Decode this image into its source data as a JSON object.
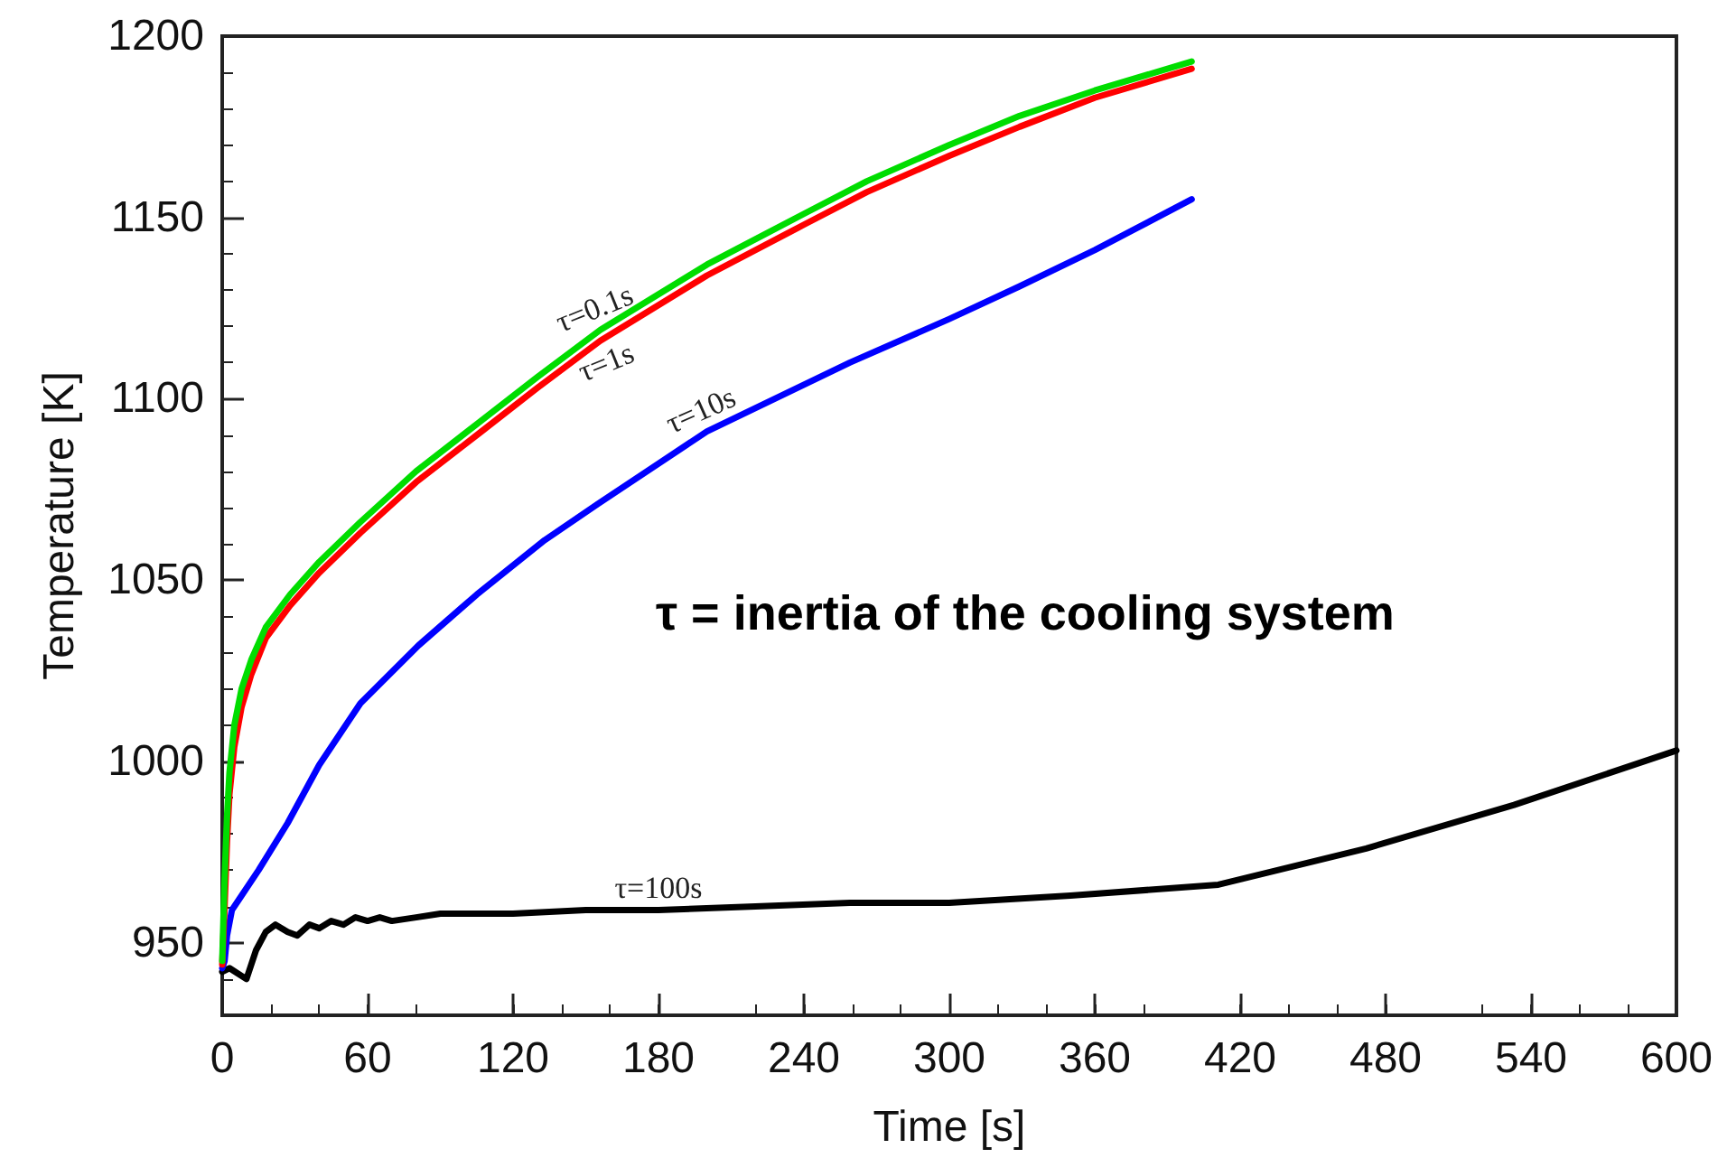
{
  "chart_data": {
    "type": "line",
    "xlabel": "Time [s]",
    "ylabel": "Temperature [K]",
    "xlim": [
      0,
      600
    ],
    "xticks": [
      0,
      60,
      120,
      180,
      240,
      300,
      360,
      420,
      480,
      540,
      600
    ],
    "ylim": [
      930,
      1200
    ],
    "yticks": [
      950,
      1000,
      1050,
      1100,
      1150,
      1200
    ],
    "grid": false,
    "legend": false,
    "line_style": "solid",
    "annotations": [
      "τ = inertia of the cooling system"
    ],
    "series": [
      {
        "name": "τ=0.1s",
        "color": "#00dd00",
        "x": [
          0,
          1,
          2,
          3,
          5,
          8,
          12,
          18,
          28,
          40,
          57,
          80,
          107,
          130,
          156,
          200,
          240,
          266,
          300,
          329,
          360,
          400
        ],
        "values": [
          945,
          968,
          985,
          997,
          1010,
          1020,
          1028,
          1037,
          1046,
          1055,
          1066,
          1080,
          1094,
          1106,
          1119,
          1137,
          1151,
          1160,
          1170,
          1178,
          1185,
          1193
        ]
      },
      {
        "name": "τ=1s",
        "color": "#ff0000",
        "x": [
          0,
          1,
          2,
          3,
          5,
          8,
          12,
          18,
          28,
          40,
          57,
          80,
          107,
          130,
          156,
          200,
          240,
          266,
          300,
          329,
          360,
          400
        ],
        "values": [
          944,
          960,
          978,
          991,
          1004,
          1015,
          1024,
          1034,
          1043,
          1052,
          1063,
          1077,
          1091,
          1103,
          1116,
          1134,
          1148,
          1157,
          1167,
          1175,
          1183,
          1191
        ]
      },
      {
        "name": "τ=10s",
        "color": "#0000ff",
        "x": [
          0,
          1,
          2,
          4,
          7,
          15,
          27,
          40,
          57,
          81,
          105,
          133,
          155,
          200,
          259,
          300,
          329,
          360,
          400
        ],
        "values": [
          943,
          945,
          952,
          959,
          962,
          970,
          983,
          999,
          1016,
          1032,
          1046,
          1061,
          1071,
          1091,
          1110,
          1122,
          1131,
          1141,
          1155
        ]
      },
      {
        "name": "τ=100s",
        "color": "#000000",
        "x": [
          0,
          3,
          10,
          14,
          18,
          22,
          27,
          31,
          36,
          40,
          45,
          50,
          55,
          60,
          65,
          70,
          80,
          90,
          100,
          120,
          150,
          180,
          220,
          259,
          300,
          350,
          411,
          472,
          533,
          600
        ],
        "values": [
          942,
          943,
          940,
          948,
          953,
          955,
          953,
          952,
          955,
          954,
          956,
          955,
          957,
          956,
          957,
          956,
          957,
          958,
          958,
          958,
          959,
          959,
          960,
          961,
          961,
          963,
          966,
          976,
          988,
          1003
        ]
      }
    ]
  }
}
